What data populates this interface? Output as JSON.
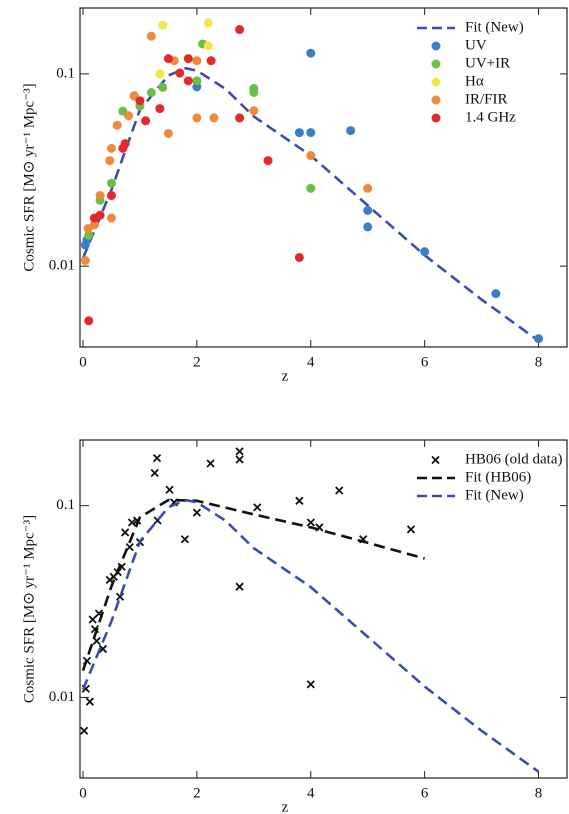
{
  "chart_data": [
    {
      "type": "scatter",
      "ylog": true,
      "legend": "upper right",
      "xlabel": "z",
      "ylabel": "Cosmic SFR [M⊙ yr⁻¹ Mpc⁻³]",
      "xlim": [
        0,
        8.5
      ],
      "ylim": [
        0.0038,
        0.22
      ],
      "xticks": [
        0,
        2,
        4,
        6,
        8
      ],
      "yticks": [
        0.01,
        0.1
      ],
      "series": [
        {
          "name": "Fit (New)",
          "style": "line",
          "color": "#3c4db0",
          "x": [
            0,
            0.5,
            1,
            1.5,
            1.8,
            2,
            2.5,
            3,
            4,
            5,
            6,
            7,
            8
          ],
          "values": [
            0.011,
            0.025,
            0.065,
            0.098,
            0.107,
            0.104,
            0.0836,
            0.06,
            0.0376,
            0.0207,
            0.0114,
            0.0067,
            0.0041
          ]
        },
        {
          "name": "UV",
          "style": "circle",
          "color": "#3a7ec8",
          "x": [
            0.04,
            0.07,
            2.0,
            3.8,
            4.0,
            4.0,
            4.7,
            5.0,
            5.0,
            6.0,
            7.25,
            8.0
          ],
          "values": [
            0.0129,
            0.0137,
            0.0856,
            0.0495,
            0.0495,
            0.128,
            0.0507,
            0.0195,
            0.016,
            0.0119,
            0.0072,
            0.0042
          ]
        },
        {
          "name": "UV+IR",
          "style": "circle",
          "color": "#6abf45",
          "x": [
            0.1,
            0.3,
            0.5,
            0.7,
            1.0,
            1.2,
            1.4,
            2.1,
            3.0,
            3.0,
            4.0,
            2.0
          ],
          "values": [
            0.0145,
            0.022,
            0.027,
            0.064,
            0.068,
            0.08,
            0.085,
            0.143,
            0.084,
            0.08,
            0.0254,
            0.092
          ]
        },
        {
          "name": "Hα",
          "style": "circle",
          "color": "#f2e84a",
          "x": [
            1.4,
            2.2,
            2.2,
            0.9,
            1.35
          ],
          "values": [
            0.179,
            0.184,
            0.14,
            0.076,
            0.1
          ]
        },
        {
          "name": "IR/FIR",
          "style": "circle",
          "color": "#f0893a",
          "x": [
            0.04,
            0.09,
            0.2,
            0.3,
            0.47,
            0.5,
            0.6,
            0.8,
            0.9,
            1.2,
            1.5,
            1.6,
            2.0,
            2.0,
            2.3,
            3.0,
            4.0,
            5.0,
            0.5
          ],
          "values": [
            0.0107,
            0.0157,
            0.0164,
            0.0233,
            0.0354,
            0.041,
            0.054,
            0.0606,
            0.077,
            0.157,
            0.049,
            0.117,
            0.117,
            0.059,
            0.059,
            0.0643,
            0.0376,
            0.0254,
            0.0178
          ]
        },
        {
          "name": "1.4 GHz",
          "style": "circle",
          "color": "#e3282e",
          "x": [
            0.1,
            0.2,
            0.3,
            0.5,
            0.7,
            0.74,
            1.0,
            1.1,
            1.35,
            1.5,
            1.7,
            1.85,
            1.85,
            2.25,
            2.75,
            2.75,
            3.25,
            3.8
          ],
          "values": [
            0.0052,
            0.0178,
            0.0184,
            0.0233,
            0.041,
            0.0434,
            0.0725,
            0.057,
            0.066,
            0.12,
            0.101,
            0.12,
            0.092,
            0.117,
            0.17,
            0.059,
            0.0354,
            0.0111
          ]
        }
      ]
    },
    {
      "type": "scatter",
      "ylog": true,
      "legend": "upper right",
      "xlabel": "z",
      "ylabel": "Cosmic SFR [M⊙ yr⁻¹ Mpc⁻³]",
      "xlim": [
        0,
        8.5
      ],
      "ylim": [
        0.0038,
        0.22
      ],
      "xticks": [
        0,
        2,
        4,
        6,
        8
      ],
      "yticks": [
        0.01,
        0.1
      ],
      "series": [
        {
          "name": "HB06 (old data)",
          "style": "cross",
          "color": "#111111",
          "x": [
            0.02,
            0.05,
            0.07,
            0.12,
            0.17,
            0.21,
            0.24,
            0.28,
            0.35,
            0.47,
            0.54,
            0.61,
            0.65,
            0.68,
            0.74,
            0.82,
            0.86,
            0.95,
            1.0,
            1.26,
            1.3,
            1.31,
            1.52,
            1.6,
            1.79,
            2.0,
            2.24,
            2.75,
            2.75,
            2.75,
            3.06,
            3.8,
            4.0,
            4.15,
            4.0,
            4.5,
            4.92,
            5.76
          ],
          "values": [
            0.0067,
            0.0111,
            0.0155,
            0.0095,
            0.0255,
            0.0227,
            0.0197,
            0.0274,
            0.0179,
            0.041,
            0.0425,
            0.045,
            0.0335,
            0.048,
            0.0725,
            0.0608,
            0.0817,
            0.0837,
            0.0645,
            0.148,
            0.177,
            0.0837,
            0.121,
            0.104,
            0.0668,
            0.092,
            0.166,
            0.192,
            0.174,
            0.0378,
            0.098,
            0.106,
            0.0817,
            0.077,
            0.0117,
            0.12,
            0.0668,
            0.0752
          ]
        },
        {
          "name": "Fit (HB06)",
          "style": "line",
          "color": "#111111",
          "x": [
            0,
            0.5,
            1,
            1.5,
            2,
            3,
            4,
            5,
            6
          ],
          "values": [
            0.0138,
            0.038,
            0.087,
            0.107,
            0.106,
            0.09,
            0.077,
            0.064,
            0.053
          ]
        },
        {
          "name": "Fit (New)",
          "style": "line",
          "color": "#3c4db0",
          "x": [
            0,
            0.5,
            1,
            1.5,
            1.8,
            2,
            2.5,
            3,
            4,
            5,
            6,
            7,
            8
          ],
          "values": [
            0.011,
            0.025,
            0.065,
            0.098,
            0.107,
            0.104,
            0.0836,
            0.06,
            0.0376,
            0.0207,
            0.0114,
            0.0067,
            0.0041
          ]
        }
      ]
    }
  ]
}
